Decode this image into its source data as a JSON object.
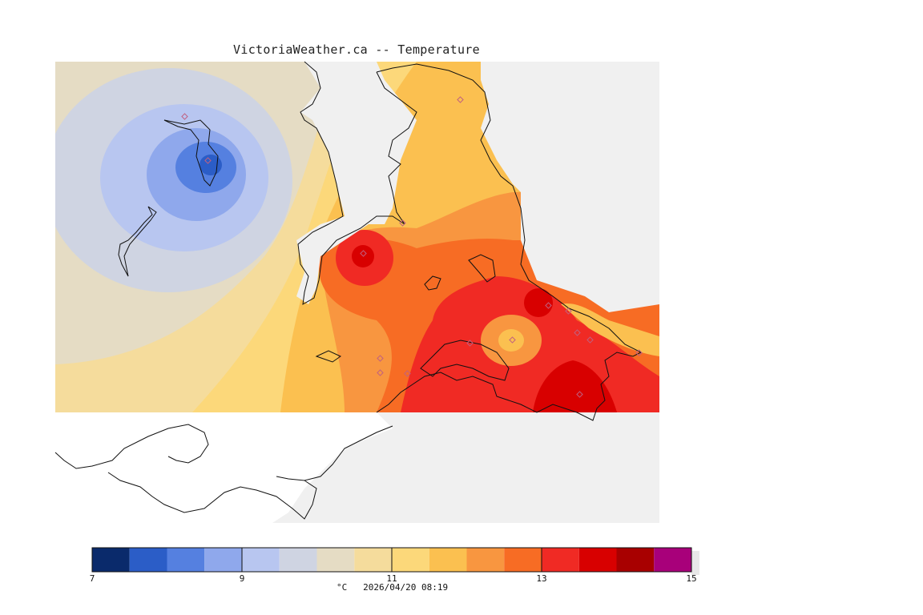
{
  "title": "VictoriaWeather.ca -- Temperature",
  "footer": {
    "unit": "°C",
    "timestamp": "2026/04/20 08:19"
  },
  "legend": {
    "min": 7,
    "max": 15,
    "step": 0.5,
    "tick_values": [
      7,
      9,
      11,
      13,
      15
    ],
    "tick_labels": [
      "7",
      "9",
      "11",
      "13",
      "15"
    ],
    "colors": [
      "#0a2a6b",
      "#2b5dc7",
      "#5580e0",
      "#8fa8ec",
      "#b8c6f0",
      "#cfd4e2",
      "#e5dcc4",
      "#f5dc9c",
      "#fcd87a",
      "#fbc050",
      "#f89640",
      "#f76c24",
      "#f02a24",
      "#d80000",
      "#a80000",
      "#a8007a"
    ]
  },
  "colors": {
    "land_background": "#f0f0f0",
    "coast": "#111111",
    "station_marker": "#c06080"
  }
}
